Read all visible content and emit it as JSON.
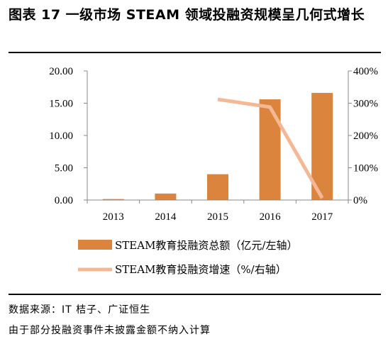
{
  "title": "图表 17 一级市场 STEAM 领域投融资规模呈几何式增长",
  "source": "数据来源：IT 桔子、广证恒生",
  "note": "由于部分投融资事件未披露金额不纳入计算",
  "colors": {
    "bar": "#DB843D",
    "line": "#F5B895"
  },
  "chart_data": {
    "type": "bar",
    "categories": [
      "2013",
      "2014",
      "2015",
      "2016",
      "2017"
    ],
    "series": [
      {
        "name": "STEAM教育投融资总额（亿元/左轴）",
        "type": "bar",
        "axis": "left",
        "values": [
          0.15,
          1.0,
          4.0,
          15.6,
          16.6
        ]
      },
      {
        "name": "STEAM教育投融资增速（%/右轴）",
        "type": "line",
        "axis": "right",
        "values": [
          null,
          null,
          312,
          288,
          6
        ]
      }
    ],
    "y_left": {
      "ylim": [
        0,
        20
      ],
      "ticks": [
        "0.00",
        "5.00",
        "10.00",
        "15.00",
        "20.00"
      ]
    },
    "y_right": {
      "ylim": [
        0,
        400
      ],
      "ticks": [
        "0%",
        "100%",
        "200%",
        "300%",
        "400%"
      ]
    },
    "grid": false,
    "legend_position": "bottom"
  }
}
